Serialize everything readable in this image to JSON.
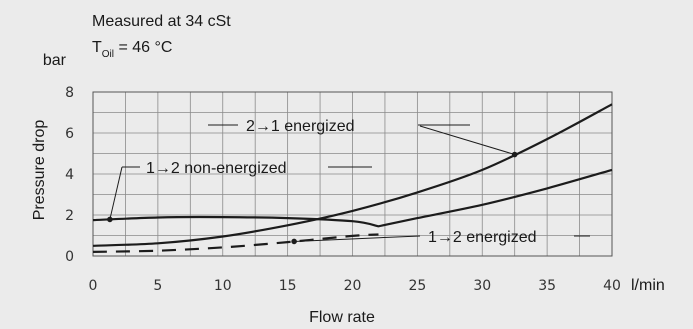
{
  "notes": {
    "measured": "Measured at 34 cSt",
    "temp_prefix": "T",
    "temp_sub": "Oil",
    "temp_value": " = 46 °C"
  },
  "chart_data": {
    "type": "line",
    "xlabel": "Flow rate",
    "ylabel": "Pressure drop",
    "x_unit": "l/min",
    "y_unit": "bar",
    "xlim": [
      0,
      40
    ],
    "ylim": [
      0,
      8
    ],
    "x_ticks": [
      0,
      5,
      10,
      15,
      20,
      25,
      30,
      35,
      40
    ],
    "y_ticks": [
      0,
      2,
      4,
      6,
      8
    ],
    "grid": true,
    "series": [
      {
        "name": "2→1 energized",
        "style": "solid",
        "x": [
          0,
          5,
          10,
          15,
          20,
          25,
          30,
          35,
          40
        ],
        "y": [
          0.5,
          0.62,
          0.95,
          1.5,
          2.2,
          3.1,
          4.2,
          5.7,
          7.4
        ]
      },
      {
        "name": "1→2 non-energized",
        "style": "solid",
        "x": [
          0,
          5,
          10,
          15,
          20,
          22,
          25,
          30,
          35,
          40
        ],
        "y": [
          1.75,
          1.88,
          1.9,
          1.85,
          1.7,
          1.45,
          1.85,
          2.5,
          3.3,
          4.2
        ]
      },
      {
        "name": "1→2 energized",
        "style": "dashed",
        "x": [
          0,
          5,
          10,
          15,
          20,
          22
        ],
        "y": [
          0.2,
          0.26,
          0.42,
          0.68,
          0.98,
          1.05
        ]
      }
    ],
    "annotations": [
      {
        "label": "2→1 energized",
        "series": 0,
        "at_x": 32.5
      },
      {
        "label": "1→2 non-energized",
        "series": 1,
        "at_x": 1.3
      },
      {
        "label": "1→2 energized",
        "series": 2,
        "at_x": 15.5
      }
    ]
  }
}
